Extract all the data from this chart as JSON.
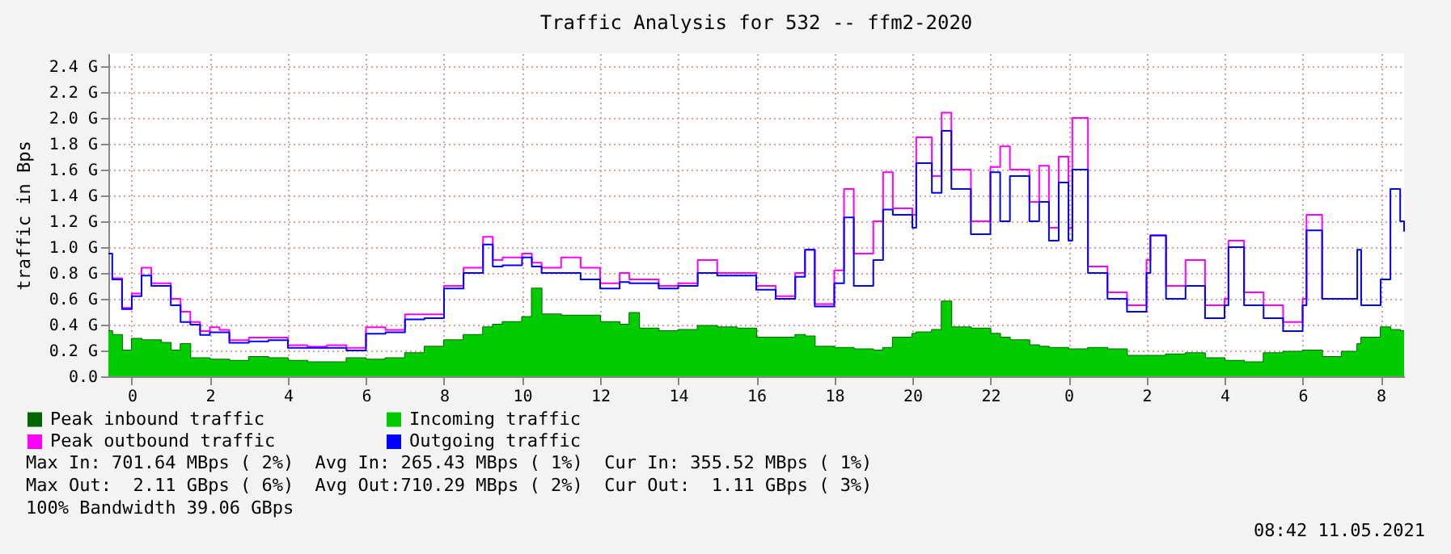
{
  "chart_data": {
    "type": "step",
    "title": "Traffic Analysis for 532 -- ffm2-2020",
    "ylabel": "traffic in Bps",
    "x": [
      "2021-05-09T23:24",
      "2021-05-09T23:30",
      "2021-05-09T23:45",
      "2021-05-10T00:00",
      "2021-05-10T00:15",
      "2021-05-10T00:30",
      "2021-05-10T00:45",
      "2021-05-10T01:00",
      "2021-05-10T01:15",
      "2021-05-10T01:30",
      "2021-05-10T01:45",
      "2021-05-10T02:00",
      "2021-05-10T02:15",
      "2021-05-10T02:30",
      "2021-05-10T03:00",
      "2021-05-10T03:30",
      "2021-05-10T04:00",
      "2021-05-10T04:30",
      "2021-05-10T05:00",
      "2021-05-10T05:30",
      "2021-05-10T06:00",
      "2021-05-10T06:30",
      "2021-05-10T07:00",
      "2021-05-10T07:30",
      "2021-05-10T08:00",
      "2021-05-10T08:30",
      "2021-05-10T09:00",
      "2021-05-10T09:15",
      "2021-05-10T09:30",
      "2021-05-10T10:00",
      "2021-05-10T10:15",
      "2021-05-10T10:30",
      "2021-05-10T11:00",
      "2021-05-10T11:30",
      "2021-05-10T12:00",
      "2021-05-10T12:30",
      "2021-05-10T12:45",
      "2021-05-10T13:00",
      "2021-05-10T13:30",
      "2021-05-10T14:00",
      "2021-05-10T14:30",
      "2021-05-10T15:00",
      "2021-05-10T15:30",
      "2021-05-10T16:00",
      "2021-05-10T16:30",
      "2021-05-10T17:00",
      "2021-05-10T17:15",
      "2021-05-10T17:30",
      "2021-05-10T18:00",
      "2021-05-10T18:15",
      "2021-05-10T18:30",
      "2021-05-10T19:00",
      "2021-05-10T19:15",
      "2021-05-10T19:30",
      "2021-05-10T20:00",
      "2021-05-10T20:06",
      "2021-05-10T20:30",
      "2021-05-10T20:45",
      "2021-05-10T21:00",
      "2021-05-10T21:30",
      "2021-05-10T22:00",
      "2021-05-10T22:15",
      "2021-05-10T22:30",
      "2021-05-10T23:00",
      "2021-05-10T23:15",
      "2021-05-10T23:30",
      "2021-05-10T23:45",
      "2021-05-11T00:00",
      "2021-05-11T00:06",
      "2021-05-11T00:30",
      "2021-05-11T01:00",
      "2021-05-11T01:30",
      "2021-05-11T02:00",
      "2021-05-11T02:06",
      "2021-05-11T02:30",
      "2021-05-11T03:00",
      "2021-05-11T03:30",
      "2021-05-11T04:00",
      "2021-05-11T04:06",
      "2021-05-11T04:30",
      "2021-05-11T05:00",
      "2021-05-11T05:30",
      "2021-05-11T06:00",
      "2021-05-11T06:06",
      "2021-05-11T06:30",
      "2021-05-11T07:00",
      "2021-05-11T07:24",
      "2021-05-11T07:30",
      "2021-05-11T08:00",
      "2021-05-11T08:15",
      "2021-05-11T08:30",
      "2021-05-11T08:36"
    ],
    "series": [
      {
        "name": "Peak inbound traffic",
        "color": "#006600",
        "values": [
          0.35,
          0.32,
          0.2,
          0.29,
          0.28,
          0.28,
          0.26,
          0.2,
          0.25,
          0.14,
          0.14,
          0.13,
          0.13,
          0.12,
          0.15,
          0.14,
          0.12,
          0.11,
          0.11,
          0.14,
          0.13,
          0.14,
          0.18,
          0.23,
          0.28,
          0.32,
          0.38,
          0.4,
          0.42,
          0.46,
          0.68,
          0.48,
          0.47,
          0.47,
          0.42,
          0.4,
          0.49,
          0.37,
          0.35,
          0.36,
          0.39,
          0.38,
          0.37,
          0.3,
          0.3,
          0.32,
          0.31,
          0.23,
          0.22,
          0.22,
          0.21,
          0.2,
          0.22,
          0.3,
          0.33,
          0.34,
          0.36,
          0.58,
          0.38,
          0.37,
          0.33,
          0.3,
          0.28,
          0.24,
          0.23,
          0.22,
          0.22,
          0.21,
          0.21,
          0.22,
          0.21,
          0.16,
          0.16,
          0.16,
          0.17,
          0.18,
          0.14,
          0.12,
          0.12,
          0.11,
          0.18,
          0.19,
          0.2,
          0.2,
          0.15,
          0.19,
          0.25,
          0.3,
          0.38,
          0.36,
          0.35,
          0.35
        ]
      },
      {
        "name": "Incoming traffic",
        "type": "area",
        "color": "#00cc00",
        "values": [
          0.35,
          0.32,
          0.2,
          0.29,
          0.28,
          0.28,
          0.26,
          0.2,
          0.25,
          0.14,
          0.14,
          0.13,
          0.13,
          0.12,
          0.15,
          0.14,
          0.12,
          0.11,
          0.11,
          0.14,
          0.13,
          0.14,
          0.18,
          0.23,
          0.28,
          0.32,
          0.38,
          0.4,
          0.42,
          0.46,
          0.68,
          0.48,
          0.47,
          0.47,
          0.42,
          0.4,
          0.49,
          0.37,
          0.35,
          0.36,
          0.39,
          0.38,
          0.37,
          0.3,
          0.3,
          0.32,
          0.31,
          0.23,
          0.22,
          0.22,
          0.21,
          0.2,
          0.22,
          0.3,
          0.33,
          0.34,
          0.36,
          0.58,
          0.38,
          0.37,
          0.33,
          0.3,
          0.28,
          0.24,
          0.23,
          0.22,
          0.22,
          0.21,
          0.21,
          0.22,
          0.21,
          0.16,
          0.16,
          0.16,
          0.17,
          0.18,
          0.14,
          0.12,
          0.12,
          0.11,
          0.18,
          0.19,
          0.2,
          0.2,
          0.15,
          0.19,
          0.25,
          0.3,
          0.38,
          0.36,
          0.35,
          0.35
        ]
      },
      {
        "name": "Peak outbound traffic",
        "color": "#ff00ff",
        "values": [
          null,
          0.76,
          0.53,
          0.64,
          0.84,
          0.72,
          0.72,
          0.6,
          0.5,
          0.42,
          0.35,
          0.38,
          0.36,
          0.28,
          0.3,
          0.3,
          0.24,
          0.23,
          0.24,
          0.22,
          0.38,
          0.36,
          0.48,
          0.48,
          0.7,
          0.84,
          1.08,
          0.9,
          0.92,
          0.95,
          0.88,
          0.84,
          0.92,
          0.84,
          0.72,
          0.8,
          0.75,
          0.75,
          0.7,
          0.72,
          0.9,
          0.8,
          0.8,
          0.7,
          0.62,
          0.8,
          0.98,
          0.56,
          0.82,
          1.45,
          0.95,
          1.2,
          1.58,
          1.3,
          1.25,
          1.85,
          1.55,
          2.04,
          1.6,
          1.2,
          1.62,
          1.78,
          1.6,
          1.35,
          1.63,
          1.15,
          1.7,
          1.15,
          2.0,
          0.85,
          0.65,
          0.55,
          0.9,
          1.09,
          0.7,
          0.9,
          0.55,
          0.6,
          1.05,
          0.65,
          0.55,
          0.42,
          0.6,
          1.25,
          0.6,
          null,
          null,
          null,
          null,
          null,
          null,
          null
        ]
      },
      {
        "name": "Outgoing traffic",
        "color": "#0000ff",
        "values": [
          0.95,
          0.75,
          0.52,
          0.62,
          0.78,
          0.7,
          0.7,
          0.55,
          0.42,
          0.4,
          0.32,
          0.34,
          0.34,
          0.26,
          0.27,
          0.28,
          0.22,
          0.22,
          0.22,
          0.2,
          0.33,
          0.34,
          0.44,
          0.45,
          0.68,
          0.8,
          1.02,
          0.85,
          0.86,
          0.92,
          0.85,
          0.8,
          0.8,
          0.75,
          0.68,
          0.73,
          0.72,
          0.72,
          0.68,
          0.7,
          0.8,
          0.78,
          0.78,
          0.67,
          0.6,
          0.77,
          0.98,
          0.54,
          0.72,
          1.23,
          0.7,
          0.9,
          1.29,
          1.25,
          1.15,
          1.65,
          1.42,
          1.9,
          1.45,
          1.1,
          1.58,
          1.2,
          1.55,
          1.2,
          1.35,
          1.05,
          1.5,
          1.05,
          1.6,
          0.8,
          0.6,
          0.5,
          0.8,
          1.09,
          0.6,
          0.7,
          0.45,
          0.55,
          1.0,
          0.55,
          0.45,
          0.35,
          0.55,
          1.13,
          0.6,
          0.6,
          0.98,
          0.55,
          0.75,
          1.45,
          1.2,
          1.12
        ]
      }
    ],
    "xlim": [
      "2021-05-09T23:24",
      "2021-05-11T08:36"
    ],
    "xticks": [
      {
        "value": "2021-05-10T00:00",
        "label": "0"
      },
      {
        "value": "2021-05-10T02:00",
        "label": "2"
      },
      {
        "value": "2021-05-10T04:00",
        "label": "4"
      },
      {
        "value": "2021-05-10T06:00",
        "label": "6"
      },
      {
        "value": "2021-05-10T08:00",
        "label": "8"
      },
      {
        "value": "2021-05-10T10:00",
        "label": "10"
      },
      {
        "value": "2021-05-10T12:00",
        "label": "12"
      },
      {
        "value": "2021-05-10T14:00",
        "label": "14"
      },
      {
        "value": "2021-05-10T16:00",
        "label": "16"
      },
      {
        "value": "2021-05-10T18:00",
        "label": "18"
      },
      {
        "value": "2021-05-10T20:00",
        "label": "20"
      },
      {
        "value": "2021-05-10T22:00",
        "label": "22"
      },
      {
        "value": "2021-05-11T00:00",
        "label": "0"
      },
      {
        "value": "2021-05-11T02:00",
        "label": "2"
      },
      {
        "value": "2021-05-11T04:00",
        "label": "4"
      },
      {
        "value": "2021-05-11T06:00",
        "label": "6"
      },
      {
        "value": "2021-05-11T08:00",
        "label": "8"
      }
    ],
    "ylim": [
      0,
      2.5
    ],
    "yticks": [
      {
        "value": 0,
        "label": "0.0"
      },
      {
        "value": 0.2,
        "label": "0.2 G"
      },
      {
        "value": 0.4,
        "label": "0.4 G"
      },
      {
        "value": 0.6,
        "label": "0.6 G"
      },
      {
        "value": 0.8,
        "label": "0.8 G"
      },
      {
        "value": 1.0,
        "label": "1.0 G"
      },
      {
        "value": 1.2,
        "label": "1.2 G"
      },
      {
        "value": 1.4,
        "label": "1.4 G"
      },
      {
        "value": 1.6,
        "label": "1.6 G"
      },
      {
        "value": 1.8,
        "label": "1.8 G"
      },
      {
        "value": 2.0,
        "label": "2.0 G"
      },
      {
        "value": 2.2,
        "label": "2.2 G"
      },
      {
        "value": 2.4,
        "label": "2.4 G"
      }
    ],
    "grid": true,
    "legend": "bottom left",
    "annotations": [
      "Max In: 701.64 MBps ( 2%)  Avg In: 265.43 MBps ( 1%)  Cur In: 355.52 MBps ( 1%)",
      "Max Out:  2.11 GBps ( 6%)  Avg Out:710.29 MBps ( 2%)  Cur Out:  1.11 GBps ( 3%)",
      "100% Bandwidth 39.06 GBps",
      "08:42 11.05.2021"
    ]
  }
}
